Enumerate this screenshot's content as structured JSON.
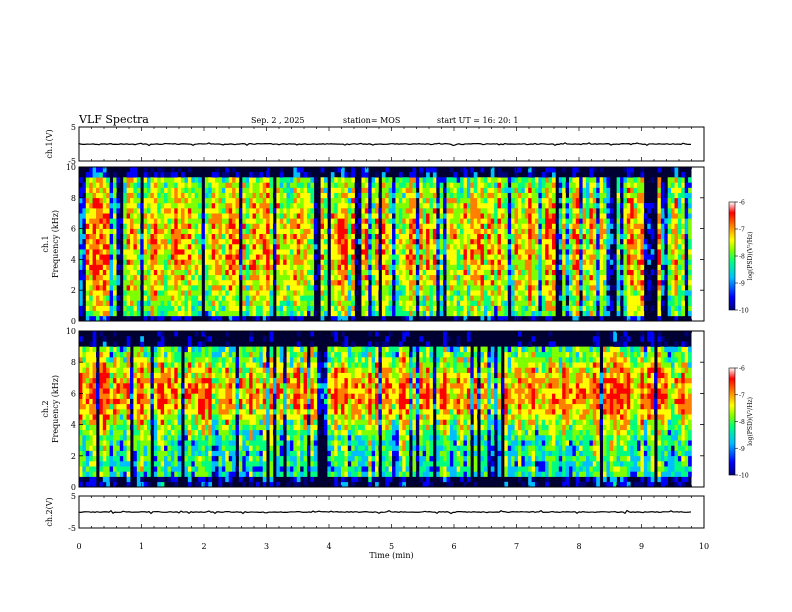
{
  "header": {
    "title": "VLF Spectra",
    "date": "Sep. 2 , 2025",
    "station": "station= MOS",
    "start": "start UT = 16: 20: 1"
  },
  "chart_data": [
    {
      "type": "line",
      "name": "ch1-waveform",
      "ylabel": "ch.1(V)",
      "ylim": [
        -5,
        5
      ],
      "yticks": [
        "5",
        "-5"
      ],
      "xlim": [
        0,
        10
      ],
      "baseline": 0,
      "data_end_min": 9.8
    },
    {
      "type": "heatmap",
      "name": "ch1-spectrogram",
      "ylabel": "ch.1",
      "ylabel2": "Frequency (kHz)",
      "yticks": [
        "0",
        "2",
        "4",
        "6",
        "8",
        "10"
      ],
      "ylim": [
        0,
        10
      ],
      "xlim": [
        0,
        10
      ],
      "data_end_min": 9.8,
      "colorbar": {
        "label": "log(PSD)(V²/Hz)",
        "ticks": [
          "-6",
          "-7",
          "-8",
          "-9",
          "-10"
        ],
        "range": [
          -10,
          -6
        ]
      }
    },
    {
      "type": "heatmap",
      "name": "ch2-spectrogram",
      "ylabel": "ch.2",
      "ylabel2": "Frequency (kHz)",
      "yticks": [
        "0",
        "2",
        "4",
        "6",
        "8",
        "10"
      ],
      "ylim": [
        0,
        10
      ],
      "xlim": [
        0,
        10
      ],
      "data_end_min": 9.8,
      "colorbar": {
        "label": "log(PSD)(V²/Hz)",
        "ticks": [
          "-6",
          "-7",
          "-8",
          "-9",
          "-10"
        ],
        "range": [
          -10,
          -6
        ]
      }
    },
    {
      "type": "line",
      "name": "ch2-waveform",
      "ylabel": "ch.2(V)",
      "ylim": [
        -5,
        5
      ],
      "yticks": [
        "5",
        "-5"
      ],
      "xlim": [
        0,
        10
      ],
      "baseline": 0,
      "data_end_min": 9.8
    }
  ],
  "xaxis": {
    "label": "Time (min)",
    "ticks": [
      "0",
      "1",
      "2",
      "3",
      "4",
      "5",
      "6",
      "7",
      "8",
      "9",
      "10"
    ]
  },
  "colors": {
    "dark": "#000033",
    "colormap": [
      "#00007f",
      "#0000ff",
      "#00bfff",
      "#00ff7f",
      "#7fff00",
      "#ffff00",
      "#ff7f00",
      "#ff0000",
      "#ffffff"
    ]
  }
}
